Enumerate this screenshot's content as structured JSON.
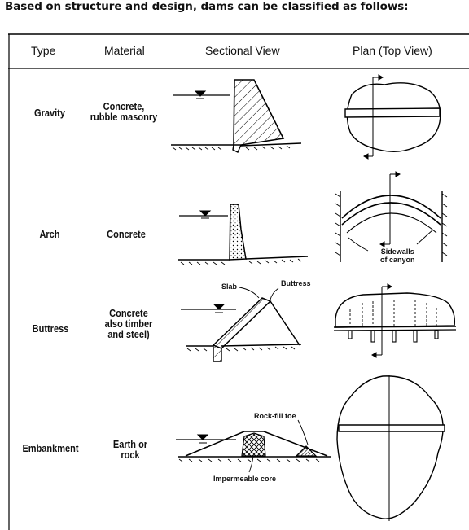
{
  "heading": "Based on structure and design, dams can be classified as follows:",
  "columns": [
    "Type",
    "Material",
    "Sectional View",
    "Plan (Top View)"
  ],
  "rows": [
    {
      "type": "Gravity",
      "material_lines": [
        "Concrete,",
        "rubble masonry"
      ]
    },
    {
      "type": "Arch",
      "material_lines": [
        "Concrete"
      ]
    },
    {
      "type": "Buttress",
      "material_lines": [
        "Concrete",
        "also timber",
        "and steel)"
      ]
    },
    {
      "type": "Embankment",
      "material_lines": [
        "Earth or",
        "rock"
      ]
    }
  ],
  "annotations": {
    "sidewalls_line1": "Sidewalls",
    "sidewalls_line2": "of canyon",
    "slab": "Slab",
    "buttress": "Buttress",
    "rockfill_toe": "Rock-fill toe",
    "impermeable_core": "Impermeable core"
  }
}
